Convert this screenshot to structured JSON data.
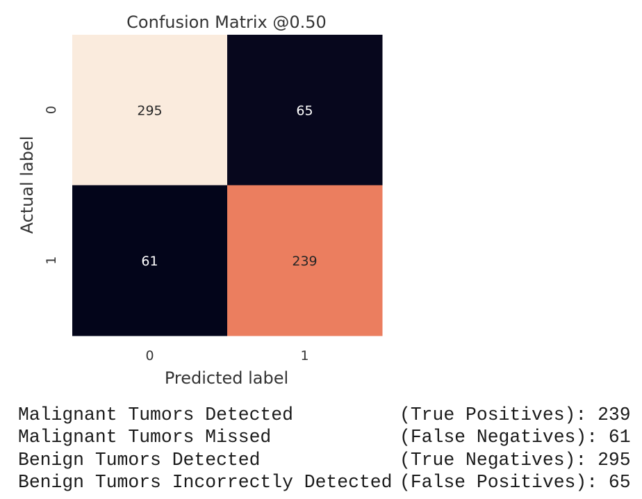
{
  "chart_data": {
    "type": "heatmap",
    "title": "Confusion Matrix @0.50",
    "xlabel": "Predicted label",
    "ylabel": "Actual label",
    "x_tick_labels": [
      "0",
      "1"
    ],
    "y_tick_labels": [
      "0",
      "1"
    ],
    "matrix": [
      [
        295,
        65
      ],
      [
        61,
        239
      ]
    ],
    "colorbar": false,
    "grid": false
  },
  "output": {
    "lines": [
      {
        "description": "Malignant Tumors Detected",
        "metric": "(True Positives):",
        "value": "239"
      },
      {
        "description": "Malignant Tumors Missed",
        "metric": "(False Negatives):",
        "value": "61"
      },
      {
        "description": "Benign Tumors Detected",
        "metric": "(True Negatives):",
        "value": "295"
      },
      {
        "description": "Benign Tumors Incorrectly Detected",
        "metric": "(False Positives):",
        "value": "65"
      }
    ]
  }
}
